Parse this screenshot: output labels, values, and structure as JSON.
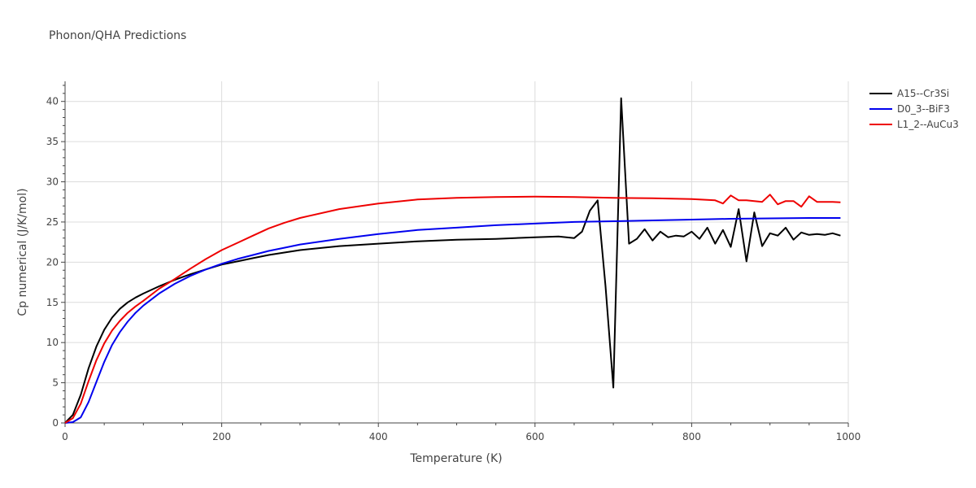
{
  "chart_data": {
    "type": "line",
    "title": "Phonon/QHA Predictions",
    "xlabel": "Temperature (K)",
    "ylabel": "Cp numerical (J/K/mol)",
    "xlim": [
      0,
      1000
    ],
    "ylim": [
      0,
      42.5
    ],
    "xticks": [
      0,
      200,
      400,
      600,
      800,
      1000
    ],
    "yticks": [
      0,
      5,
      10,
      15,
      20,
      25,
      30,
      35,
      40
    ],
    "grid": true,
    "legend_position": "top-right",
    "series": [
      {
        "name": "A15--Cr3Si",
        "color": "#000000",
        "x": [
          0,
          10,
          20,
          30,
          40,
          50,
          60,
          70,
          80,
          90,
          100,
          120,
          140,
          160,
          180,
          200,
          220,
          240,
          260,
          280,
          300,
          350,
          400,
          450,
          500,
          550,
          600,
          630,
          650,
          660,
          670,
          680,
          690,
          700,
          710,
          720,
          730,
          740,
          750,
          760,
          770,
          780,
          790,
          800,
          810,
          820,
          830,
          840,
          850,
          860,
          870,
          880,
          890,
          900,
          910,
          920,
          930,
          940,
          950,
          960,
          970,
          980,
          990
        ],
        "y": [
          0,
          1.0,
          3.5,
          6.8,
          9.5,
          11.6,
          13.1,
          14.2,
          15.0,
          15.6,
          16.1,
          17.0,
          17.8,
          18.5,
          19.1,
          19.7,
          20.1,
          20.5,
          20.9,
          21.2,
          21.5,
          22.0,
          22.3,
          22.6,
          22.8,
          22.9,
          23.1,
          23.2,
          23.0,
          23.8,
          26.4,
          27.7,
          17.0,
          4.4,
          40.4,
          22.3,
          22.9,
          24.1,
          22.7,
          23.8,
          23.1,
          23.3,
          23.2,
          23.8,
          22.9,
          24.3,
          22.3,
          24.0,
          21.9,
          26.6,
          20.1,
          26.2,
          22.0,
          23.6,
          23.3,
          24.3,
          22.8,
          23.7,
          23.4,
          23.5,
          23.4,
          23.6,
          23.3
        ]
      },
      {
        "name": "D0_3--BiF3",
        "color": "#0000ee",
        "x": [
          0,
          10,
          20,
          30,
          40,
          50,
          60,
          70,
          80,
          90,
          100,
          120,
          140,
          160,
          180,
          200,
          220,
          240,
          260,
          280,
          300,
          350,
          400,
          450,
          500,
          550,
          600,
          650,
          700,
          750,
          800,
          850,
          900,
          950,
          990
        ],
        "y": [
          0,
          0.1,
          0.7,
          2.6,
          5.1,
          7.6,
          9.7,
          11.3,
          12.6,
          13.7,
          14.6,
          16.1,
          17.3,
          18.3,
          19.1,
          19.8,
          20.4,
          20.9,
          21.4,
          21.8,
          22.2,
          22.9,
          23.5,
          24.0,
          24.3,
          24.6,
          24.8,
          25.0,
          25.1,
          25.2,
          25.3,
          25.4,
          25.45,
          25.5,
          25.5
        ]
      },
      {
        "name": "L1_2--AuCu3",
        "color": "#ee0000",
        "x": [
          0,
          10,
          20,
          30,
          40,
          50,
          60,
          70,
          80,
          90,
          100,
          120,
          140,
          160,
          180,
          200,
          220,
          240,
          260,
          280,
          300,
          350,
          400,
          450,
          500,
          550,
          600,
          650,
          700,
          750,
          800,
          830,
          840,
          850,
          860,
          870,
          880,
          890,
          900,
          910,
          920,
          930,
          940,
          950,
          960,
          970,
          980,
          990
        ],
        "y": [
          0,
          0.6,
          2.4,
          5.2,
          7.8,
          9.9,
          11.5,
          12.7,
          13.7,
          14.5,
          15.2,
          16.7,
          17.9,
          19.2,
          20.4,
          21.5,
          22.4,
          23.3,
          24.2,
          24.9,
          25.5,
          26.6,
          27.3,
          27.8,
          28.0,
          28.1,
          28.15,
          28.1,
          28.0,
          27.95,
          27.85,
          27.7,
          27.3,
          28.3,
          27.7,
          27.7,
          27.6,
          27.5,
          28.4,
          27.2,
          27.6,
          27.6,
          26.9,
          28.2,
          27.5,
          27.5,
          27.5,
          27.45
        ]
      }
    ]
  }
}
